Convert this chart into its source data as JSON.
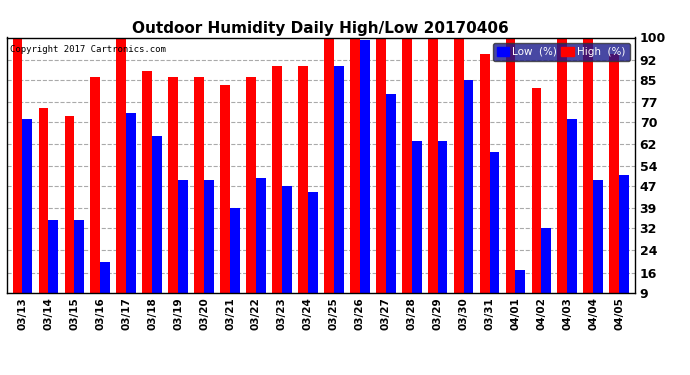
{
  "title": "Outdoor Humidity Daily High/Low 20170406",
  "copyright": "Copyright 2017 Cartronics.com",
  "legend_low": "Low  (%)",
  "legend_high": "High  (%)",
  "color_low": "#0000ff",
  "color_high": "#ff0000",
  "background_color": "#ffffff",
  "plot_bg_color": "#ffffff",
  "ylim": [
    9,
    100
  ],
  "yticks": [
    9,
    16,
    24,
    32,
    39,
    47,
    54,
    62,
    70,
    77,
    85,
    92,
    100
  ],
  "dates": [
    "03/13",
    "03/14",
    "03/15",
    "03/16",
    "03/17",
    "03/18",
    "03/19",
    "03/20",
    "03/21",
    "03/22",
    "03/23",
    "03/24",
    "03/25",
    "03/26",
    "03/27",
    "03/28",
    "03/29",
    "03/30",
    "03/31",
    "04/01",
    "04/02",
    "04/03",
    "04/04",
    "04/05"
  ],
  "high": [
    100,
    75,
    72,
    86,
    100,
    88,
    86,
    86,
    83,
    86,
    90,
    90,
    100,
    100,
    100,
    100,
    100,
    100,
    94,
    100,
    82,
    100,
    100,
    94
  ],
  "low": [
    71,
    35,
    35,
    20,
    73,
    65,
    49,
    49,
    39,
    50,
    47,
    45,
    90,
    99,
    80,
    63,
    63,
    85,
    59,
    17,
    32,
    71,
    49,
    51
  ]
}
